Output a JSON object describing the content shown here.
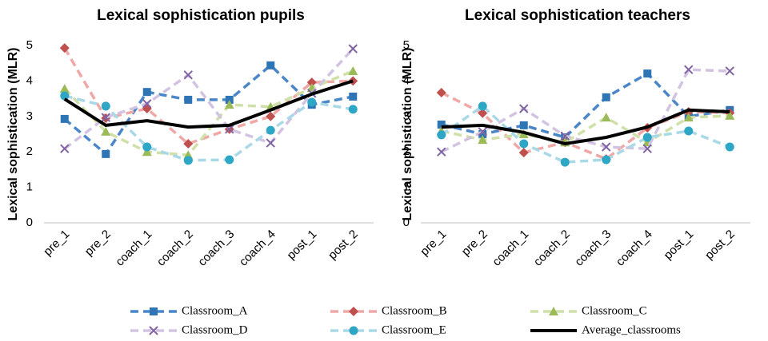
{
  "chart_data": [
    {
      "type": "line",
      "title": "Lexical sophistication pupils",
      "y_label": "Lexical sophistication (MLR)",
      "categories": [
        "pre_1",
        "pre_2",
        "coach_1",
        "coach_2",
        "coach_3",
        "coach_4",
        "post_1",
        "post_2"
      ],
      "ylim": [
        0,
        5
      ],
      "yticks": [
        0,
        1,
        2,
        3,
        4,
        5
      ],
      "series": [
        {
          "name": "Classroom_A",
          "color": "#4a86c8",
          "marker_color": "#2e75b6",
          "marker": "square",
          "dashed": true,
          "values": [
            2.93,
            1.94,
            3.69,
            3.47,
            3.47,
            4.44,
            3.33,
            3.56
          ]
        },
        {
          "name": "Classroom_B",
          "color": "#f0a8a6",
          "marker_color": "#c0504d",
          "marker": "diamond",
          "dashed": true,
          "values": [
            4.93,
            2.95,
            3.22,
            2.23,
            2.64,
            3.0,
            3.96,
            4.0
          ]
        },
        {
          "name": "Classroom_C",
          "color": "#cfe0a8",
          "marker_color": "#9bbb59",
          "marker": "triangle",
          "dashed": true,
          "values": [
            3.78,
            2.57,
            2.0,
            1.91,
            3.33,
            3.27,
            3.8,
            4.28
          ]
        },
        {
          "name": "Classroom_D",
          "color": "#d3c3e2",
          "marker_color": "#8064a2",
          "marker": "x",
          "dashed": true,
          "values": [
            2.09,
            2.97,
            3.36,
            4.17,
            2.64,
            2.25,
            3.65,
            4.91
          ]
        },
        {
          "name": "Classroom_E",
          "color": "#a9d8e6",
          "marker_color": "#2ea6c6",
          "marker": "circle",
          "dashed": true,
          "values": [
            3.58,
            3.29,
            2.14,
            1.76,
            1.78,
            2.61,
            3.4,
            3.2
          ]
        },
        {
          "name": "Average_classrooms",
          "color": "#000000",
          "marker": "none",
          "dashed": false,
          "values": [
            3.49,
            2.75,
            2.88,
            2.7,
            2.75,
            3.18,
            3.63,
            4.0
          ]
        }
      ]
    },
    {
      "type": "line",
      "title": "Lexical sophistication teachers",
      "y_label": "Lexical sophistication (MLR)",
      "categories": [
        "pre_1",
        "pre_2",
        "coach_1",
        "coach_2",
        "coach_3",
        "coach_4",
        "post_1",
        "post_2"
      ],
      "ylim": [
        0,
        5
      ],
      "yticks": [
        0,
        1,
        2,
        3,
        4,
        5
      ],
      "series": [
        {
          "name": "Classroom_A",
          "color": "#4a86c8",
          "marker_color": "#2e75b6",
          "marker": "square",
          "dashed": true,
          "values": [
            2.77,
            2.5,
            2.75,
            2.41,
            3.54,
            4.21,
            3.0,
            3.18
          ]
        },
        {
          "name": "Classroom_B",
          "color": "#f0a8a6",
          "marker_color": "#c0504d",
          "marker": "diamond",
          "dashed": true,
          "values": [
            3.67,
            3.09,
            1.98,
            2.27,
            1.8,
            2.68,
            3.13,
            3.1
          ]
        },
        {
          "name": "Classroom_C",
          "color": "#cfe0a8",
          "marker_color": "#9bbb59",
          "marker": "triangle",
          "dashed": true,
          "values": [
            2.59,
            2.34,
            2.5,
            2.27,
            2.97,
            2.27,
            2.97,
            3.02
          ]
        },
        {
          "name": "Classroom_D",
          "color": "#d3c3e2",
          "marker_color": "#8064a2",
          "marker": "x",
          "dashed": true,
          "values": [
            2.0,
            2.57,
            3.22,
            2.45,
            2.14,
            2.09,
            4.32,
            4.28
          ]
        },
        {
          "name": "Classroom_E",
          "color": "#a9d8e6",
          "marker_color": "#2ea6c6",
          "marker": "circle",
          "dashed": true,
          "values": [
            2.48,
            3.29,
            2.23,
            1.71,
            1.78,
            2.41,
            2.59,
            2.14
          ]
        },
        {
          "name": "Average_classrooms",
          "color": "#000000",
          "marker": "none",
          "dashed": false,
          "values": [
            2.7,
            2.75,
            2.55,
            2.23,
            2.41,
            2.7,
            3.18,
            3.13
          ]
        }
      ]
    }
  ]
}
